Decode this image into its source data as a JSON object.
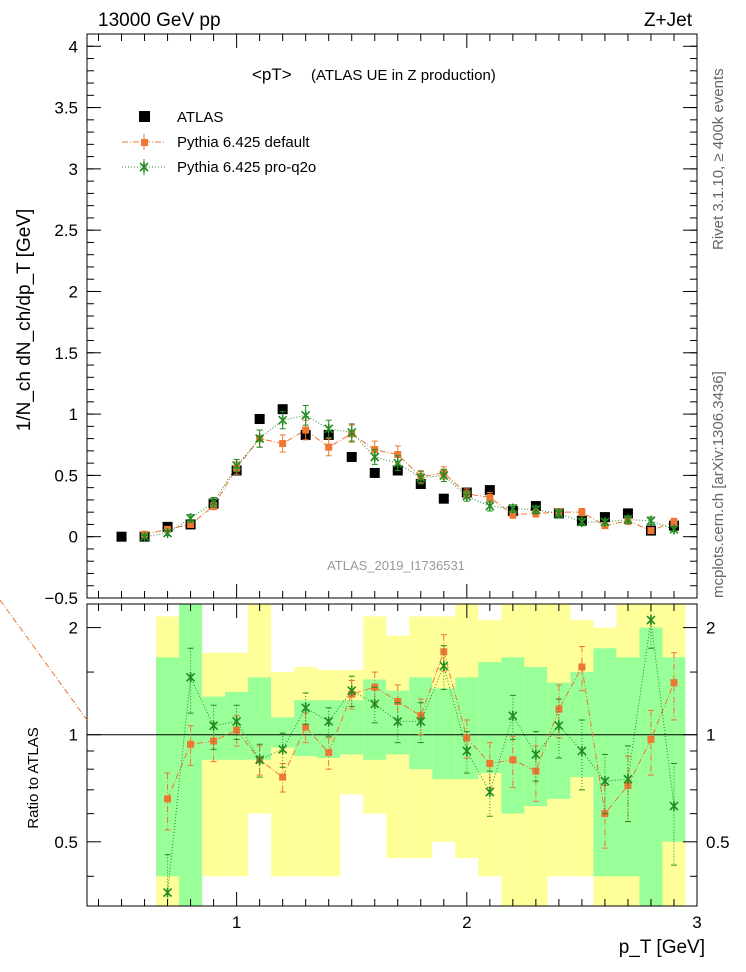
{
  "header": {
    "left": "13000 GeV pp",
    "right": "Z+Jet"
  },
  "side_labels": {
    "top": "Rivet 3.1.10, ≥ 400k events",
    "bottom": "mcplots.cern.ch [arXiv:1306.3436]"
  },
  "chart_data": [
    {
      "type": "scatter",
      "title": "<pT>",
      "subtitle": "(ATLAS UE in Z production)",
      "watermark": "ATLAS_2019_I1736531",
      "ylabel": "1/N_ch dN_ch/dp_T [GeV]",
      "xlabel": "p_T [GeV]",
      "xlim": [
        0.35,
        3.0
      ],
      "ylim": [
        -0.5,
        4.1
      ],
      "yticks": [
        -0.5,
        0,
        0.5,
        1,
        1.5,
        2,
        2.5,
        3,
        3.5,
        4
      ],
      "ytick_labels": [
        "−0.5",
        "0",
        "0.5",
        "1",
        "1.5",
        "2",
        "2.5",
        "3",
        "3.5",
        "4"
      ],
      "legend_position": "top-left",
      "x": [
        0.5,
        0.6,
        0.7,
        0.8,
        0.9,
        1.0,
        1.1,
        1.2,
        1.3,
        1.4,
        1.5,
        1.6,
        1.7,
        1.8,
        1.9,
        2.0,
        2.1,
        2.2,
        2.3,
        2.4,
        2.5,
        2.6,
        2.7,
        2.8,
        2.9
      ],
      "series": [
        {
          "name": "ATLAS",
          "color": "#000000",
          "marker": "square",
          "values": [
            0.0,
            0.0,
            0.08,
            0.1,
            0.27,
            0.54,
            0.96,
            1.04,
            0.83,
            0.83,
            0.65,
            0.52,
            0.54,
            0.43,
            0.31,
            0.36,
            0.38,
            0.21,
            0.25,
            0.19,
            0.13,
            0.16,
            0.19,
            0.05,
            0.09
          ]
        },
        {
          "name": "Pythia 6.425 default",
          "color": "#ee7733",
          "marker": "square-small",
          "line": "dashdot",
          "values": [
            null,
            0.02,
            0.06,
            0.1,
            0.25,
            0.56,
            0.8,
            0.76,
            0.87,
            0.73,
            0.84,
            0.71,
            0.67,
            0.49,
            0.52,
            0.35,
            0.32,
            0.18,
            0.19,
            0.2,
            0.2,
            0.09,
            0.13,
            0.05,
            0.12
          ],
          "errors": [
            null,
            0.01,
            0.02,
            0.02,
            0.03,
            0.05,
            0.07,
            0.07,
            0.08,
            0.07,
            0.07,
            0.07,
            0.07,
            0.05,
            0.05,
            0.04,
            0.04,
            0.03,
            0.03,
            0.03,
            0.03,
            0.02,
            0.03,
            0.02,
            0.03
          ]
        },
        {
          "name": "Pythia 6.425 pro-q2o",
          "color": "#228b22",
          "marker": "star",
          "line": "dotted",
          "values": [
            null,
            0.0,
            0.03,
            0.15,
            0.28,
            0.58,
            0.8,
            0.95,
            0.99,
            0.88,
            0.85,
            0.65,
            0.6,
            0.48,
            0.5,
            0.33,
            0.25,
            0.23,
            0.22,
            0.19,
            0.12,
            0.12,
            0.14,
            0.13,
            0.06
          ],
          "errors": [
            null,
            0.01,
            0.02,
            0.03,
            0.04,
            0.05,
            0.07,
            0.07,
            0.08,
            0.07,
            0.07,
            0.06,
            0.06,
            0.05,
            0.05,
            0.04,
            0.04,
            0.03,
            0.03,
            0.03,
            0.03,
            0.02,
            0.03,
            0.03,
            0.02
          ]
        }
      ]
    },
    {
      "type": "scatter",
      "ylabel": "Ratio to ATLAS",
      "xlabel": "p_T [GeV]",
      "xlim": [
        0.35,
        3.0
      ],
      "ylim": [
        0.33,
        2.33
      ],
      "log_y": true,
      "yticks": [
        0.5,
        1,
        2
      ],
      "ytick_labels": [
        "0.5",
        "1",
        "2"
      ],
      "xticks": [
        1,
        2,
        3
      ],
      "xtick_labels": [
        "1",
        "2",
        "3"
      ],
      "reference_line": 1.0,
      "band_colors": {
        "inner": "#99ff99",
        "outer": "#ffff99"
      },
      "bins": [
        [
          0.65,
          0.75
        ],
        [
          0.75,
          0.85
        ],
        [
          0.85,
          0.95
        ],
        [
          0.95,
          1.05
        ],
        [
          1.05,
          1.15
        ],
        [
          1.15,
          1.25
        ],
        [
          1.25,
          1.35
        ],
        [
          1.35,
          1.45
        ],
        [
          1.45,
          1.55
        ],
        [
          1.55,
          1.65
        ],
        [
          1.65,
          1.75
        ],
        [
          1.75,
          1.85
        ],
        [
          1.85,
          1.95
        ],
        [
          1.95,
          2.05
        ],
        [
          2.05,
          2.15
        ],
        [
          2.15,
          2.25
        ],
        [
          2.25,
          2.35
        ],
        [
          2.35,
          2.45
        ],
        [
          2.45,
          2.55
        ],
        [
          2.55,
          2.65
        ],
        [
          2.65,
          2.75
        ],
        [
          2.75,
          2.85
        ],
        [
          2.85,
          2.95
        ]
      ],
      "band_inner": [
        [
          0.4,
          1.65
        ],
        [
          0.33,
          2.33
        ],
        [
          0.85,
          1.28
        ],
        [
          0.85,
          1.32
        ],
        [
          0.85,
          1.45
        ],
        [
          0.92,
          1.12
        ],
        [
          0.87,
          1.25
        ],
        [
          0.86,
          1.25
        ],
        [
          0.88,
          1.25
        ],
        [
          0.85,
          1.43
        ],
        [
          0.88,
          1.33
        ],
        [
          0.8,
          1.45
        ],
        [
          0.75,
          1.35
        ],
        [
          0.75,
          1.45
        ],
        [
          0.78,
          1.6
        ],
        [
          0.6,
          1.65
        ],
        [
          0.63,
          1.55
        ],
        [
          0.66,
          1.4
        ],
        [
          0.76,
          1.5
        ],
        [
          0.4,
          1.75
        ],
        [
          0.4,
          1.65
        ],
        [
          0.33,
          2.0
        ],
        [
          0.5,
          1.65
        ]
      ],
      "band_outer": [
        [
          0.33,
          2.15
        ],
        [
          0.33,
          2.33
        ],
        [
          0.4,
          1.7
        ],
        [
          0.4,
          1.7
        ],
        [
          0.6,
          2.33
        ],
        [
          0.4,
          1.5
        ],
        [
          0.4,
          1.55
        ],
        [
          0.4,
          1.52
        ],
        [
          0.68,
          1.52
        ],
        [
          0.6,
          2.15
        ],
        [
          0.45,
          1.9
        ],
        [
          0.45,
          2.15
        ],
        [
          0.5,
          2.15
        ],
        [
          0.45,
          2.33
        ],
        [
          0.4,
          2.1
        ],
        [
          0.33,
          2.33
        ],
        [
          0.33,
          2.33
        ],
        [
          0.4,
          2.33
        ],
        [
          0.4,
          2.1
        ],
        [
          0.33,
          2.0
        ],
        [
          0.33,
          2.33
        ],
        [
          0.33,
          2.33
        ],
        [
          0.33,
          2.33
        ]
      ],
      "x": [
        0.7,
        0.8,
        0.9,
        1.0,
        1.1,
        1.2,
        1.3,
        1.4,
        1.5,
        1.6,
        1.7,
        1.8,
        1.9,
        2.0,
        2.1,
        2.2,
        2.3,
        2.4,
        2.5,
        2.6,
        2.7,
        2.8,
        2.9
      ],
      "series": [
        {
          "name": "Pythia 6.425 default",
          "color": "#ee7733",
          "marker": "square-small",
          "line": "dashdot",
          "values": [
            0.66,
            0.94,
            0.96,
            1.03,
            0.85,
            0.76,
            1.05,
            0.89,
            1.3,
            1.36,
            1.24,
            1.13,
            1.71,
            0.98,
            0.83,
            0.85,
            0.79,
            1.18,
            1.55,
            0.6,
            0.72,
            0.97,
            1.4
          ],
          "errors": [
            0.12,
            0.12,
            0.12,
            0.1,
            0.08,
            0.07,
            0.1,
            0.09,
            0.12,
            0.14,
            0.14,
            0.13,
            0.2,
            0.12,
            0.12,
            0.14,
            0.14,
            0.2,
            0.22,
            0.12,
            0.15,
            0.2,
            0.3
          ]
        },
        {
          "name": "Pythia 6.425 pro-q2o",
          "color": "#228b22",
          "marker": "star",
          "line": "dotted",
          "values": [
            0.36,
            1.45,
            1.06,
            1.09,
            0.85,
            0.91,
            1.19,
            1.09,
            1.33,
            1.22,
            1.09,
            1.09,
            1.56,
            0.9,
            0.69,
            1.13,
            0.88,
            1.06,
            0.9,
            0.74,
            0.75,
            2.1,
            0.63
          ],
          "errors": [
            0.1,
            0.3,
            0.15,
            0.12,
            0.09,
            0.1,
            0.12,
            0.1,
            0.13,
            0.14,
            0.14,
            0.14,
            0.22,
            0.12,
            0.1,
            0.16,
            0.14,
            0.2,
            0.2,
            0.14,
            0.18,
            0.35,
            0.2
          ]
        }
      ]
    }
  ]
}
